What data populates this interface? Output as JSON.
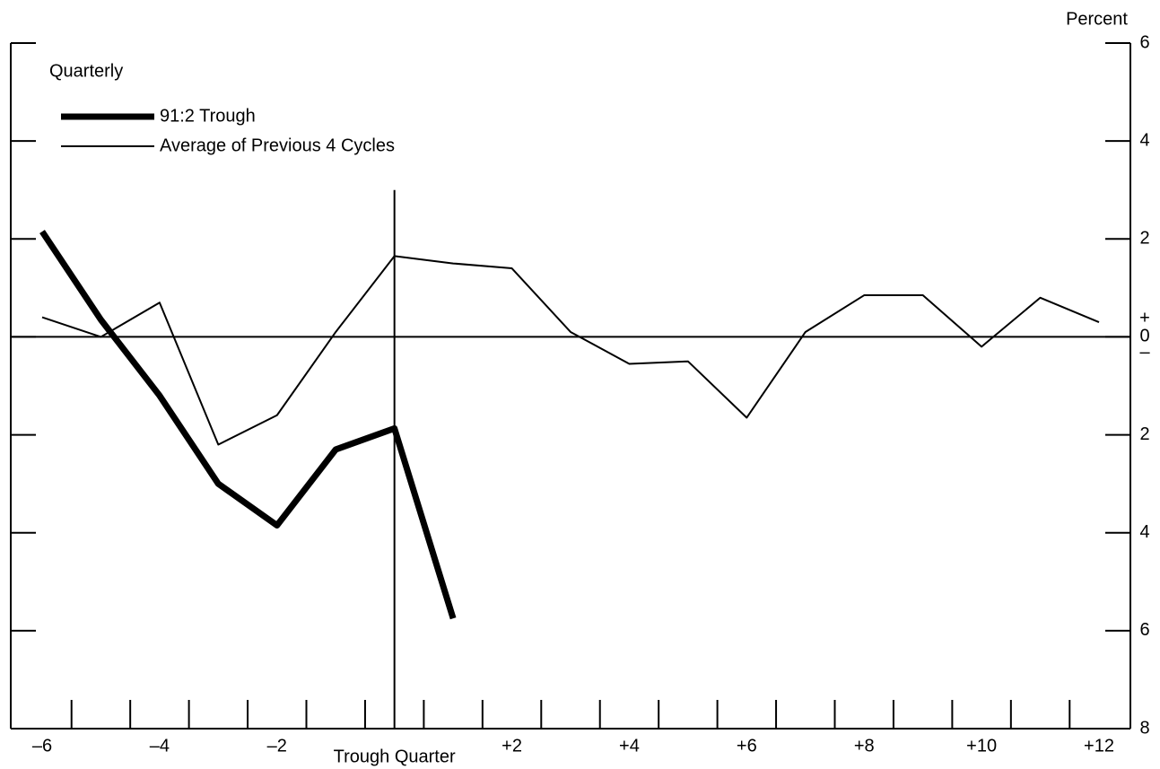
{
  "chart_data": {
    "type": "line",
    "annotations": {
      "frequency": "Quarterly",
      "unit": "Percent",
      "plus": "+",
      "minus": "–"
    },
    "x": [
      -6,
      -5,
      -4,
      -3,
      -2,
      -1,
      0,
      1,
      2,
      3,
      4,
      5,
      6,
      7,
      8,
      9,
      10,
      11,
      12
    ],
    "series": [
      {
        "name": "91:2 Trough",
        "color": "#000000",
        "width": 7,
        "values": [
          2.15,
          0.35,
          -1.2,
          -3.0,
          -3.85,
          -2.3,
          -1.87,
          -5.75,
          null,
          null,
          null,
          null,
          null,
          null,
          null,
          null,
          null,
          null,
          null
        ]
      },
      {
        "name": "Average of Previous 4 Cycles",
        "color": "#000000",
        "width": 2,
        "values": [
          0.4,
          0.0,
          0.7,
          -2.2,
          -1.6,
          0.1,
          1.65,
          1.5,
          1.4,
          0.1,
          -0.55,
          -0.5,
          -1.65,
          0.1,
          0.85,
          0.85,
          -0.2,
          0.8,
          0.3
        ]
      }
    ],
    "xlim": [
      -6,
      12
    ],
    "xticks": [
      {
        "value": -6,
        "label": "–6"
      },
      {
        "value": -4,
        "label": "–4"
      },
      {
        "value": -2,
        "label": "–2"
      },
      {
        "value": 0,
        "label": "Trough Quarter"
      },
      {
        "value": 2,
        "label": "+2"
      },
      {
        "value": 4,
        "label": "+4"
      },
      {
        "value": 6,
        "label": "+6"
      },
      {
        "value": 8,
        "label": "+8"
      },
      {
        "value": 10,
        "label": "+10"
      },
      {
        "value": 12,
        "label": "+12"
      }
    ],
    "xminor_ticks": [
      -5.5,
      -4.5,
      -3.5,
      -2.5,
      -1.5,
      -0.5,
      0.5,
      1.5,
      2.5,
      3.5,
      4.5,
      5.5,
      6.5,
      7.5,
      8.5,
      9.5,
      10.5,
      11.5
    ],
    "ylim": [
      -8,
      6
    ],
    "yticks": [
      6,
      4,
      2,
      0,
      {
        "value": -2,
        "label": "2"
      },
      {
        "value": -4,
        "label": "4"
      },
      {
        "value": -6,
        "label": "6"
      },
      {
        "value": -8,
        "label": "8"
      }
    ],
    "trough_x": 0,
    "trough_line_top": 3
  }
}
